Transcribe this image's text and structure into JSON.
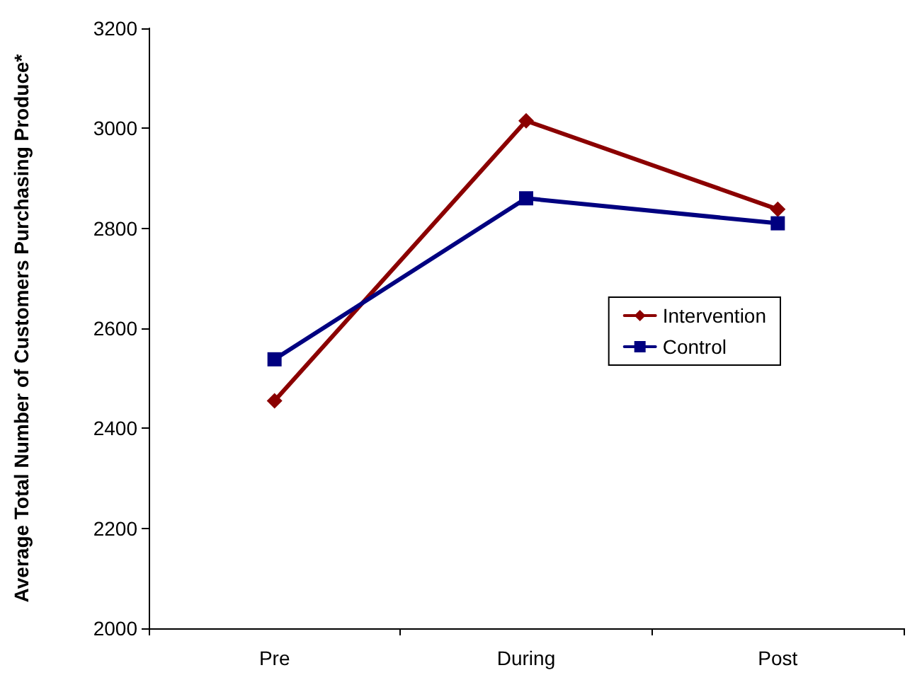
{
  "chart_data": {
    "type": "line",
    "ylabel": "Average Total Number of Customers Purchasing Produce*",
    "categories": [
      "Pre",
      "During",
      "Post"
    ],
    "series": [
      {
        "name": "Intervention",
        "color": "#8b0000",
        "values": [
          2455,
          3015,
          2838
        ],
        "marker": "diamond"
      },
      {
        "name": "Control",
        "color": "#000080",
        "values": [
          2538,
          2860,
          2810
        ],
        "marker": "square"
      }
    ],
    "ylim": [
      2000,
      3200
    ],
    "yticks": [
      2000,
      2200,
      2400,
      2600,
      2800,
      3000,
      3200
    ],
    "grid": false,
    "legend": "right",
    "line_style": "solid"
  }
}
